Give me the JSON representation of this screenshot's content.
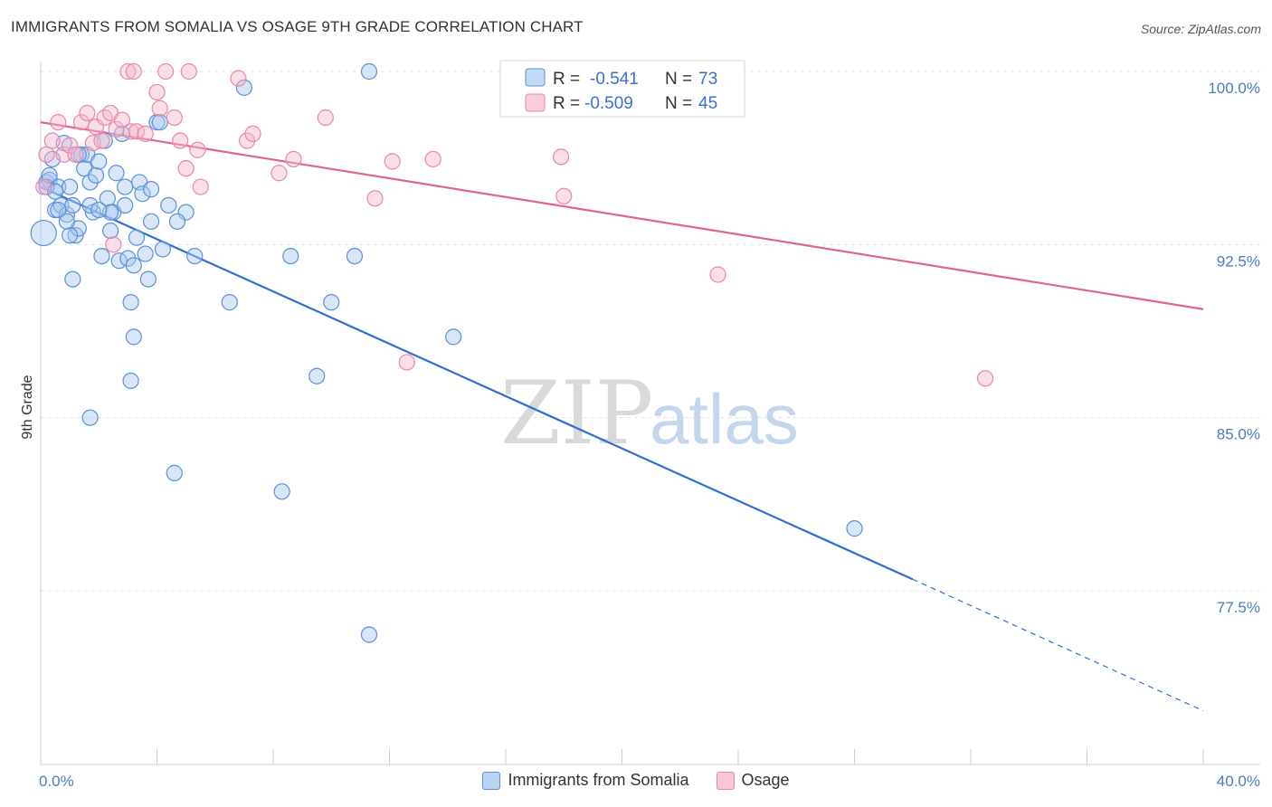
{
  "title": "IMMIGRANTS FROM SOMALIA VS OSAGE 9TH GRADE CORRELATION CHART",
  "source": "Source: ZipAtlas.com",
  "watermark": {
    "zip": "ZIP",
    "atlas": "atlas"
  },
  "legend_box": {
    "r_label": "R =",
    "n_label": "N =",
    "rows": [
      {
        "r": "-0.541",
        "n": "73"
      },
      {
        "r": "-0.509",
        "n": "45"
      }
    ]
  },
  "bottom_legend": [
    "Immigrants from Somalia",
    "Osage"
  ],
  "colors": {
    "blue_fill": "#a9c8f0",
    "blue_stroke": "#5b8fd9",
    "blue_line": "#2e6fd1",
    "pink_fill": "#f5b8cf",
    "pink_stroke": "#e887aa",
    "pink_line": "#e0648f"
  },
  "chart_data": {
    "type": "scatter",
    "xlabel": "",
    "ylabel": "9th Grade",
    "xlim": [
      0,
      40
    ],
    "ylim": [
      72,
      101
    ],
    "x_tick_labels": [
      "0.0%",
      "40.0%"
    ],
    "y_ticks": [
      100.0,
      92.5,
      85.0,
      77.5
    ],
    "y_tick_labels": [
      "100.0%",
      "92.5%",
      "85.0%",
      "77.5%"
    ],
    "grid": true,
    "series": [
      {
        "name": "Immigrants from Somalia",
        "color": "blue",
        "trend": {
          "x": [
            0,
            30,
            40
          ],
          "y": [
            95.0,
            78.0,
            72.3
          ]
        },
        "points": [
          [
            0.1,
            93.0
          ],
          [
            0.2,
            95.2
          ],
          [
            0.3,
            95.3
          ],
          [
            0.4,
            96.2
          ],
          [
            0.5,
            94.0
          ],
          [
            0.6,
            95.0
          ],
          [
            0.7,
            94.2
          ],
          [
            0.8,
            96.9
          ],
          [
            0.9,
            93.8
          ],
          [
            1.0,
            95.0
          ],
          [
            1.1,
            94.2
          ],
          [
            1.2,
            92.9
          ],
          [
            1.3,
            93.2
          ],
          [
            1.4,
            96.4
          ],
          [
            1.5,
            95.8
          ],
          [
            1.6,
            96.4
          ],
          [
            1.7,
            95.2
          ],
          [
            1.8,
            93.9
          ],
          [
            1.9,
            95.5
          ],
          [
            2.0,
            96.1
          ],
          [
            2.1,
            92.0
          ],
          [
            2.2,
            97.0
          ],
          [
            2.3,
            94.5
          ],
          [
            2.4,
            93.1
          ],
          [
            2.5,
            93.9
          ],
          [
            2.6,
            95.6
          ],
          [
            2.7,
            91.8
          ],
          [
            2.8,
            97.3
          ],
          [
            2.9,
            94.2
          ],
          [
            3.0,
            91.9
          ],
          [
            3.2,
            91.6
          ],
          [
            3.4,
            95.2
          ],
          [
            3.5,
            94.7
          ],
          [
            3.6,
            92.1
          ],
          [
            3.7,
            91.0
          ],
          [
            3.8,
            93.5
          ],
          [
            4.0,
            97.8
          ],
          [
            4.2,
            92.3
          ],
          [
            4.4,
            94.2
          ],
          [
            1.0,
            92.9
          ],
          [
            1.1,
            91.0
          ],
          [
            1.7,
            94.2
          ],
          [
            2.4,
            93.9
          ],
          [
            3.3,
            92.8
          ],
          [
            3.1,
            90.0
          ],
          [
            3.2,
            88.5
          ],
          [
            3.1,
            86.6
          ],
          [
            1.7,
            85.0
          ],
          [
            4.6,
            82.6
          ],
          [
            6.5,
            90.0
          ],
          [
            7.0,
            99.3
          ],
          [
            8.6,
            92.0
          ],
          [
            9.5,
            86.8
          ],
          [
            10.0,
            90.0
          ],
          [
            10.8,
            92.0
          ],
          [
            11.3,
            100.0
          ],
          [
            14.2,
            88.5
          ],
          [
            8.3,
            81.8
          ],
          [
            11.3,
            75.6
          ],
          [
            28.0,
            80.2
          ],
          [
            0.2,
            95.0
          ],
          [
            0.3,
            95.5
          ],
          [
            0.5,
            94.8
          ],
          [
            0.6,
            94.0
          ],
          [
            0.9,
            93.5
          ],
          [
            1.3,
            96.4
          ],
          [
            2.0,
            94.0
          ],
          [
            2.9,
            95.0
          ],
          [
            3.8,
            94.9
          ],
          [
            4.1,
            97.8
          ],
          [
            5.0,
            93.9
          ],
          [
            5.3,
            92.0
          ],
          [
            4.7,
            93.5
          ]
        ]
      },
      {
        "name": "Osage",
        "color": "pink",
        "trend": {
          "x": [
            0,
            40
          ],
          "y": [
            97.8,
            89.7
          ]
        },
        "points": [
          [
            0.1,
            95.0
          ],
          [
            0.2,
            96.4
          ],
          [
            0.4,
            97.0
          ],
          [
            0.6,
            97.8
          ],
          [
            0.8,
            96.4
          ],
          [
            1.0,
            96.8
          ],
          [
            1.2,
            96.4
          ],
          [
            1.4,
            97.8
          ],
          [
            1.6,
            98.2
          ],
          [
            1.8,
            96.9
          ],
          [
            1.9,
            97.6
          ],
          [
            2.1,
            97.0
          ],
          [
            2.2,
            98.0
          ],
          [
            2.4,
            98.2
          ],
          [
            2.6,
            97.5
          ],
          [
            2.8,
            97.9
          ],
          [
            3.1,
            97.4
          ],
          [
            3.3,
            97.4
          ],
          [
            3.6,
            97.3
          ],
          [
            4.0,
            99.1
          ],
          [
            4.1,
            98.4
          ],
          [
            4.3,
            100.0
          ],
          [
            4.6,
            98.0
          ],
          [
            4.8,
            97.0
          ],
          [
            5.0,
            95.8
          ],
          [
            5.4,
            96.6
          ],
          [
            5.5,
            95.0
          ],
          [
            3.0,
            100.0
          ],
          [
            3.2,
            100.0
          ],
          [
            5.1,
            100.0
          ],
          [
            6.8,
            99.7
          ],
          [
            7.1,
            97.0
          ],
          [
            7.3,
            97.3
          ],
          [
            8.2,
            95.6
          ],
          [
            8.7,
            96.2
          ],
          [
            9.8,
            98.0
          ],
          [
            11.5,
            94.5
          ],
          [
            12.1,
            96.1
          ],
          [
            12.6,
            87.4
          ],
          [
            13.5,
            96.2
          ],
          [
            17.9,
            96.3
          ],
          [
            18.0,
            94.6
          ],
          [
            23.3,
            91.2
          ],
          [
            32.5,
            86.7
          ],
          [
            2.5,
            92.5
          ]
        ]
      }
    ]
  }
}
